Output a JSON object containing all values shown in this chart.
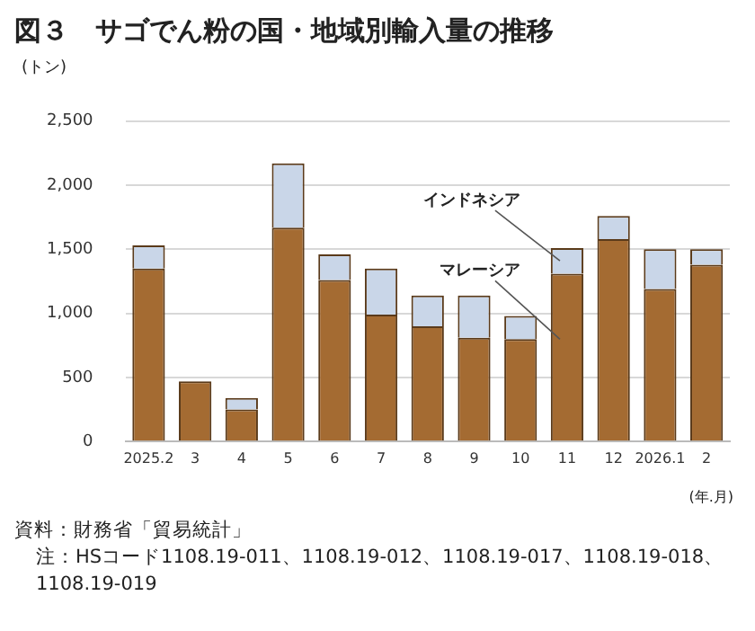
{
  "chart_data": {
    "type": "bar",
    "title": "図３　サゴでん粉の国・地域別輸入量の推移",
    "ylabel": "(トン)",
    "xlabel": "(年.月)",
    "categories": [
      "2025.2",
      "3",
      "4",
      "5",
      "6",
      "7",
      "8",
      "9",
      "10",
      "11",
      "12",
      "2026.1",
      "2"
    ],
    "stacked": true,
    "series": [
      {
        "name": "マレーシア",
        "color": "#a46b32",
        "values": [
          1350,
          470,
          250,
          1670,
          1260,
          990,
          900,
          810,
          800,
          1310,
          1580,
          1190,
          1380
        ]
      },
      {
        "name": "インドネシア",
        "color": "#c9d6e8",
        "values": [
          180,
          0,
          90,
          500,
          200,
          360,
          240,
          330,
          180,
          200,
          180,
          310,
          120
        ]
      }
    ],
    "ylim": [
      0,
      2500
    ],
    "yticks": [
      0,
      {
        "value": 500,
        "label": "500"
      },
      {
        "value": 1000,
        "label": "1,000"
      },
      {
        "value": 1500,
        "label": "1,500"
      },
      {
        "value": 2000,
        "label": "2,000"
      },
      {
        "value": 2500,
        "label": "2,500"
      }
    ],
    "grid": "y",
    "legend": false,
    "annotations": [
      "資料：財務省「貿易統計」",
      "注：HSコード1108.19-011、1108.19-012、1108.19-017、1108.19-018、1108.19-019"
    ]
  }
}
